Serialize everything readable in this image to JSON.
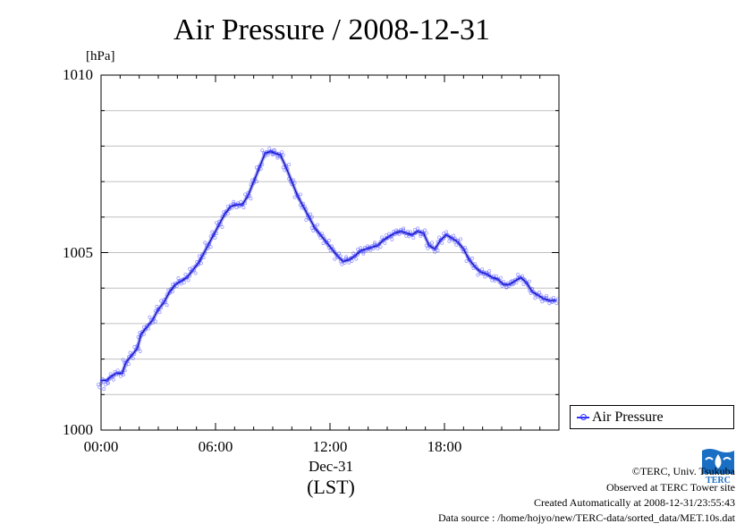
{
  "title": "Air Pressure / 2008-12-31",
  "unit": "[hPa]",
  "y_ticks": [
    "1010",
    "1005",
    "1000"
  ],
  "x_ticks": [
    "00:00",
    "06:00",
    "12:00",
    "18:00"
  ],
  "date_label": "Dec-31",
  "xlabel": "(LST)",
  "legend": "Air Pressure",
  "footer": {
    "copyright": "©TERC, Univ. Tsukuba",
    "observed": "Observed at TERC Tower site",
    "created": "Created Automatically at 2008-12-31/23:55:43",
    "source": "Data source : /home/hojyo/new/TERC-data/sorted_data/MET.10s.dat"
  },
  "logo_text": "TERC",
  "colors": {
    "series": "#3333ff",
    "grid": "#c0c0c0",
    "logo": "#1a6fc4"
  },
  "chart_data": {
    "type": "line",
    "title": "Air Pressure / 2008-12-31",
    "ylabel": "[hPa]",
    "xlabel": "(LST)",
    "xlim": [
      0,
      24
    ],
    "ylim": [
      1000,
      1010
    ],
    "grid": true,
    "legend_position": "right",
    "series": [
      {
        "name": "Air Pressure",
        "x": [
          0.0,
          0.3,
          0.5,
          0.8,
          1.1,
          1.3,
          1.6,
          1.9,
          2.1,
          2.4,
          2.7,
          3.0,
          3.3,
          3.6,
          3.9,
          4.2,
          4.5,
          4.8,
          5.1,
          5.3,
          5.6,
          5.9,
          6.2,
          6.5,
          6.8,
          7.1,
          7.4,
          7.7,
          8.0,
          8.3,
          8.6,
          8.9,
          9.1,
          9.4,
          9.7,
          10.0,
          10.3,
          10.6,
          10.9,
          11.2,
          11.5,
          11.8,
          12.1,
          12.4,
          12.7,
          13.0,
          13.3,
          13.6,
          13.9,
          14.2,
          14.5,
          14.8,
          15.1,
          15.4,
          15.7,
          16.0,
          16.3,
          16.6,
          16.9,
          17.2,
          17.5,
          17.8,
          18.1,
          18.4,
          18.7,
          19.0,
          19.3,
          19.6,
          19.9,
          20.2,
          20.5,
          20.8,
          21.1,
          21.4,
          21.7,
          22.0,
          22.3,
          22.6,
          22.9,
          23.2,
          23.5,
          23.8
        ],
        "values": [
          1001.4,
          1001.4,
          1001.5,
          1001.6,
          1001.6,
          1001.9,
          1002.1,
          1002.3,
          1002.7,
          1002.9,
          1003.1,
          1003.4,
          1003.6,
          1003.9,
          1004.1,
          1004.2,
          1004.3,
          1004.5,
          1004.7,
          1004.9,
          1005.2,
          1005.5,
          1005.8,
          1006.1,
          1006.3,
          1006.35,
          1006.35,
          1006.6,
          1007.0,
          1007.4,
          1007.8,
          1007.85,
          1007.8,
          1007.75,
          1007.4,
          1007.0,
          1006.6,
          1006.3,
          1006.0,
          1005.7,
          1005.5,
          1005.3,
          1005.1,
          1004.9,
          1004.75,
          1004.8,
          1004.9,
          1005.05,
          1005.1,
          1005.15,
          1005.2,
          1005.35,
          1005.45,
          1005.55,
          1005.6,
          1005.55,
          1005.5,
          1005.6,
          1005.55,
          1005.2,
          1005.1,
          1005.35,
          1005.5,
          1005.4,
          1005.3,
          1005.1,
          1004.8,
          1004.6,
          1004.45,
          1004.4,
          1004.3,
          1004.25,
          1004.1,
          1004.1,
          1004.2,
          1004.3,
          1004.15,
          1003.9,
          1003.8,
          1003.7,
          1003.65,
          1003.65
        ]
      }
    ]
  }
}
